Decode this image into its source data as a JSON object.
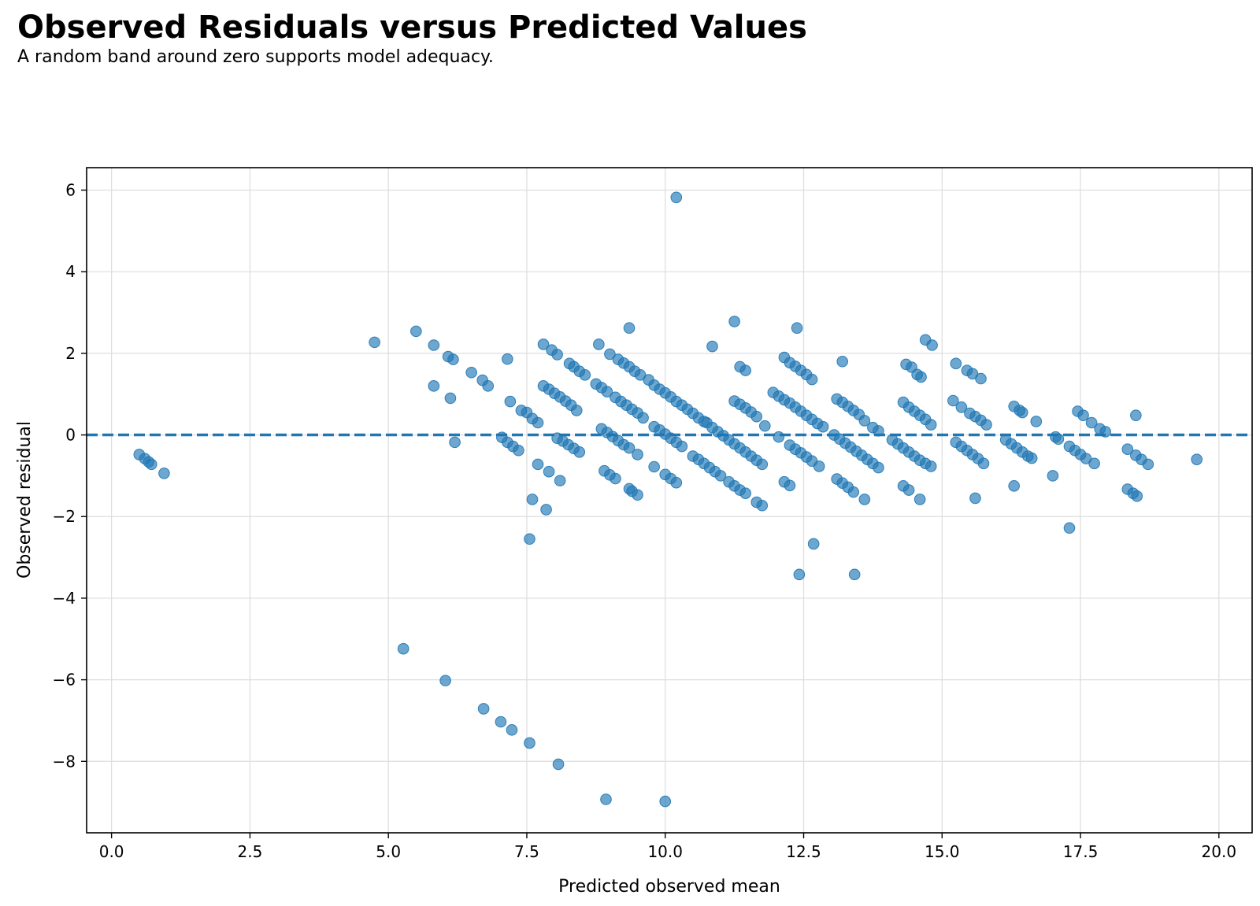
{
  "chart_data": {
    "type": "scatter",
    "title": "Observed Residuals versus Predicted Values",
    "subtitle": "A random band around zero supports model adequacy.",
    "xlabel": "Predicted observed mean",
    "ylabel": "Observed residual",
    "xlim": [
      -0.45,
      20.6
    ],
    "ylim": [
      -9.75,
      6.55
    ],
    "x_ticks": [
      0.0,
      2.5,
      5.0,
      7.5,
      10.0,
      12.5,
      15.0,
      17.5,
      20.0
    ],
    "x_tick_labels": [
      "0.0",
      "2.5",
      "5.0",
      "7.5",
      "10.0",
      "12.5",
      "15.0",
      "17.5",
      "20.0"
    ],
    "y_ticks": [
      -8,
      -6,
      -4,
      -2,
      0,
      2,
      4,
      6
    ],
    "y_tick_labels": [
      "−8",
      "−6",
      "−4",
      "−2",
      "0",
      "2",
      "4",
      "6"
    ],
    "grid": true,
    "reference_line": {
      "y": 0,
      "style": "dashed",
      "color": "#1f77b4"
    },
    "point_color": "#1f77b4",
    "point_alpha": 0.65,
    "points": [
      [
        0.5,
        -0.48
      ],
      [
        0.6,
        -0.58
      ],
      [
        0.67,
        -0.66
      ],
      [
        0.72,
        -0.72
      ],
      [
        0.95,
        -0.94
      ],
      [
        4.75,
        2.27
      ],
      [
        5.5,
        2.54
      ],
      [
        5.82,
        2.2
      ],
      [
        5.82,
        1.2
      ],
      [
        6.08,
        1.92
      ],
      [
        6.17,
        1.85
      ],
      [
        6.12,
        0.9
      ],
      [
        6.2,
        -0.18
      ],
      [
        6.5,
        1.53
      ],
      [
        6.7,
        1.34
      ],
      [
        6.8,
        1.2
      ],
      [
        7.15,
        1.86
      ],
      [
        7.2,
        0.82
      ],
      [
        7.05,
        -0.06
      ],
      [
        7.15,
        -0.18
      ],
      [
        7.25,
        -0.28
      ],
      [
        7.35,
        -0.38
      ],
      [
        7.4,
        0.6
      ],
      [
        7.5,
        0.55
      ],
      [
        7.6,
        0.4
      ],
      [
        7.7,
        0.3
      ],
      [
        7.7,
        -0.72
      ],
      [
        7.9,
        -0.9
      ],
      [
        8.1,
        -1.12
      ],
      [
        7.6,
        -1.58
      ],
      [
        7.85,
        -1.83
      ],
      [
        7.55,
        -2.55
      ],
      [
        5.27,
        -5.24
      ],
      [
        6.03,
        -6.02
      ],
      [
        6.72,
        -6.71
      ],
      [
        7.03,
        -7.03
      ],
      [
        7.23,
        -7.23
      ],
      [
        7.55,
        -7.55
      ],
      [
        8.07,
        -8.07
      ],
      [
        8.93,
        -8.93
      ],
      [
        10.0,
        -8.98
      ],
      [
        7.8,
        2.22
      ],
      [
        7.95,
        2.08
      ],
      [
        8.05,
        1.97
      ],
      [
        8.27,
        1.75
      ],
      [
        8.35,
        1.67
      ],
      [
        8.45,
        1.56
      ],
      [
        8.55,
        1.47
      ],
      [
        7.8,
        1.2
      ],
      [
        7.9,
        1.12
      ],
      [
        8.0,
        1.02
      ],
      [
        8.1,
        0.93
      ],
      [
        8.2,
        0.83
      ],
      [
        8.3,
        0.73
      ],
      [
        8.4,
        0.6
      ],
      [
        8.05,
        -0.08
      ],
      [
        8.15,
        -0.15
      ],
      [
        8.25,
        -0.24
      ],
      [
        8.35,
        -0.33
      ],
      [
        8.45,
        -0.42
      ],
      [
        8.8,
        2.22
      ],
      [
        9.0,
        1.98
      ],
      [
        9.15,
        1.85
      ],
      [
        9.25,
        1.76
      ],
      [
        9.35,
        1.67
      ],
      [
        9.45,
        1.56
      ],
      [
        9.55,
        1.47
      ],
      [
        9.35,
        2.62
      ],
      [
        8.75,
        1.25
      ],
      [
        8.85,
        1.16
      ],
      [
        8.95,
        1.06
      ],
      [
        9.1,
        0.92
      ],
      [
        9.2,
        0.82
      ],
      [
        9.3,
        0.73
      ],
      [
        9.4,
        0.63
      ],
      [
        9.5,
        0.54
      ],
      [
        9.6,
        0.42
      ],
      [
        8.85,
        0.15
      ],
      [
        8.95,
        0.06
      ],
      [
        9.05,
        -0.04
      ],
      [
        9.15,
        -0.14
      ],
      [
        9.25,
        -0.24
      ],
      [
        9.35,
        -0.32
      ],
      [
        8.9,
        -0.88
      ],
      [
        9.0,
        -0.98
      ],
      [
        9.1,
        -1.07
      ],
      [
        9.35,
        -1.32
      ],
      [
        9.4,
        -1.38
      ],
      [
        9.5,
        -1.47
      ],
      [
        9.5,
        -0.48
      ],
      [
        9.7,
        1.35
      ],
      [
        9.8,
        1.22
      ],
      [
        9.9,
        1.12
      ],
      [
        10.0,
        1.03
      ],
      [
        10.1,
        0.93
      ],
      [
        10.2,
        0.82
      ],
      [
        10.3,
        0.73
      ],
      [
        10.4,
        0.63
      ],
      [
        10.5,
        0.53
      ],
      [
        10.6,
        0.42
      ],
      [
        10.7,
        0.33
      ],
      [
        9.8,
        0.2
      ],
      [
        9.9,
        0.12
      ],
      [
        10.0,
        0.02
      ],
      [
        10.1,
        -0.08
      ],
      [
        10.2,
        -0.18
      ],
      [
        10.3,
        -0.28
      ],
      [
        9.8,
        -0.78
      ],
      [
        10.0,
        -0.97
      ],
      [
        10.1,
        -1.07
      ],
      [
        10.2,
        -1.17
      ],
      [
        10.2,
        5.82
      ],
      [
        10.85,
        2.17
      ],
      [
        11.25,
        2.78
      ],
      [
        11.35,
        1.67
      ],
      [
        11.45,
        1.58
      ],
      [
        10.75,
        0.3
      ],
      [
        10.85,
        0.18
      ],
      [
        10.95,
        0.08
      ],
      [
        11.05,
        -0.02
      ],
      [
        11.15,
        -0.12
      ],
      [
        11.25,
        -0.22
      ],
      [
        11.35,
        -0.32
      ],
      [
        11.45,
        -0.42
      ],
      [
        11.55,
        -0.52
      ],
      [
        11.65,
        -0.62
      ],
      [
        11.75,
        -0.72
      ],
      [
        10.5,
        -0.52
      ],
      [
        10.6,
        -0.6
      ],
      [
        10.7,
        -0.7
      ],
      [
        10.8,
        -0.8
      ],
      [
        10.9,
        -0.9
      ],
      [
        11.0,
        -1.0
      ],
      [
        11.15,
        -1.15
      ],
      [
        11.25,
        -1.25
      ],
      [
        11.35,
        -1.35
      ],
      [
        11.45,
        -1.43
      ],
      [
        11.65,
        -1.65
      ],
      [
        11.75,
        -1.73
      ],
      [
        11.25,
        0.83
      ],
      [
        11.35,
        0.75
      ],
      [
        11.45,
        0.66
      ],
      [
        11.55,
        0.56
      ],
      [
        11.65,
        0.45
      ],
      [
        11.8,
        0.22
      ],
      [
        12.15,
        1.9
      ],
      [
        12.25,
        1.77
      ],
      [
        12.35,
        1.68
      ],
      [
        12.45,
        1.58
      ],
      [
        12.55,
        1.48
      ],
      [
        12.65,
        1.36
      ],
      [
        12.38,
        2.62
      ],
      [
        11.95,
        1.04
      ],
      [
        12.05,
        0.95
      ],
      [
        12.15,
        0.86
      ],
      [
        12.25,
        0.78
      ],
      [
        12.35,
        0.68
      ],
      [
        12.45,
        0.58
      ],
      [
        12.55,
        0.48
      ],
      [
        12.65,
        0.38
      ],
      [
        12.75,
        0.28
      ],
      [
        12.85,
        0.2
      ],
      [
        12.05,
        -0.05
      ],
      [
        12.25,
        -0.25
      ],
      [
        12.35,
        -0.35
      ],
      [
        12.45,
        -0.44
      ],
      [
        12.55,
        -0.54
      ],
      [
        12.65,
        -0.64
      ],
      [
        12.78,
        -0.77
      ],
      [
        12.15,
        -1.15
      ],
      [
        12.25,
        -1.24
      ],
      [
        12.42,
        -3.42
      ],
      [
        12.68,
        -2.67
      ],
      [
        13.2,
        1.8
      ],
      [
        13.1,
        0.88
      ],
      [
        13.2,
        0.8
      ],
      [
        13.3,
        0.7
      ],
      [
        13.4,
        0.6
      ],
      [
        13.5,
        0.5
      ],
      [
        13.6,
        0.35
      ],
      [
        13.75,
        0.18
      ],
      [
        13.85,
        0.1
      ],
      [
        13.05,
        0.0
      ],
      [
        13.15,
        -0.1
      ],
      [
        13.25,
        -0.2
      ],
      [
        13.35,
        -0.3
      ],
      [
        13.45,
        -0.4
      ],
      [
        13.55,
        -0.5
      ],
      [
        13.65,
        -0.6
      ],
      [
        13.75,
        -0.7
      ],
      [
        13.85,
        -0.8
      ],
      [
        13.1,
        -1.08
      ],
      [
        13.2,
        -1.18
      ],
      [
        13.3,
        -1.28
      ],
      [
        13.4,
        -1.4
      ],
      [
        13.6,
        -1.58
      ],
      [
        13.42,
        -3.42
      ],
      [
        14.7,
        2.33
      ],
      [
        14.82,
        2.2
      ],
      [
        14.35,
        1.73
      ],
      [
        14.45,
        1.66
      ],
      [
        14.55,
        1.48
      ],
      [
        14.62,
        1.42
      ],
      [
        14.3,
        0.8
      ],
      [
        14.4,
        0.68
      ],
      [
        14.5,
        0.58
      ],
      [
        14.6,
        0.48
      ],
      [
        14.7,
        0.38
      ],
      [
        14.8,
        0.25
      ],
      [
        14.1,
        -0.12
      ],
      [
        14.2,
        -0.22
      ],
      [
        14.3,
        -0.32
      ],
      [
        14.4,
        -0.42
      ],
      [
        14.5,
        -0.52
      ],
      [
        14.6,
        -0.62
      ],
      [
        14.7,
        -0.7
      ],
      [
        14.8,
        -0.77
      ],
      [
        14.3,
        -1.25
      ],
      [
        14.4,
        -1.35
      ],
      [
        14.6,
        -1.58
      ],
      [
        15.25,
        1.75
      ],
      [
        15.45,
        1.58
      ],
      [
        15.55,
        1.5
      ],
      [
        15.7,
        1.38
      ],
      [
        15.2,
        0.84
      ],
      [
        15.35,
        0.68
      ],
      [
        15.5,
        0.53
      ],
      [
        15.6,
        0.45
      ],
      [
        15.7,
        0.36
      ],
      [
        15.8,
        0.25
      ],
      [
        15.25,
        -0.18
      ],
      [
        15.35,
        -0.28
      ],
      [
        15.45,
        -0.38
      ],
      [
        15.55,
        -0.48
      ],
      [
        15.65,
        -0.58
      ],
      [
        15.75,
        -0.7
      ],
      [
        15.6,
        -1.55
      ],
      [
        16.3,
        0.7
      ],
      [
        16.4,
        0.6
      ],
      [
        16.45,
        0.55
      ],
      [
        16.7,
        0.33
      ],
      [
        16.15,
        -0.12
      ],
      [
        16.25,
        -0.22
      ],
      [
        16.35,
        -0.32
      ],
      [
        16.45,
        -0.42
      ],
      [
        16.55,
        -0.52
      ],
      [
        16.62,
        -0.57
      ],
      [
        16.3,
        -1.25
      ],
      [
        17.05,
        -0.05
      ],
      [
        17.1,
        -0.1
      ],
      [
        17.0,
        -1.0
      ],
      [
        17.45,
        0.58
      ],
      [
        17.55,
        0.48
      ],
      [
        17.7,
        0.3
      ],
      [
        17.85,
        0.15
      ],
      [
        17.95,
        0.08
      ],
      [
        17.3,
        -0.28
      ],
      [
        17.4,
        -0.38
      ],
      [
        17.5,
        -0.48
      ],
      [
        17.6,
        -0.58
      ],
      [
        17.75,
        -0.7
      ],
      [
        17.3,
        -2.28
      ],
      [
        18.5,
        0.48
      ],
      [
        18.35,
        -0.35
      ],
      [
        18.5,
        -0.5
      ],
      [
        18.6,
        -0.6
      ],
      [
        18.72,
        -0.72
      ],
      [
        18.35,
        -1.33
      ],
      [
        18.45,
        -1.43
      ],
      [
        18.52,
        -1.5
      ],
      [
        19.6,
        -0.6
      ]
    ]
  }
}
